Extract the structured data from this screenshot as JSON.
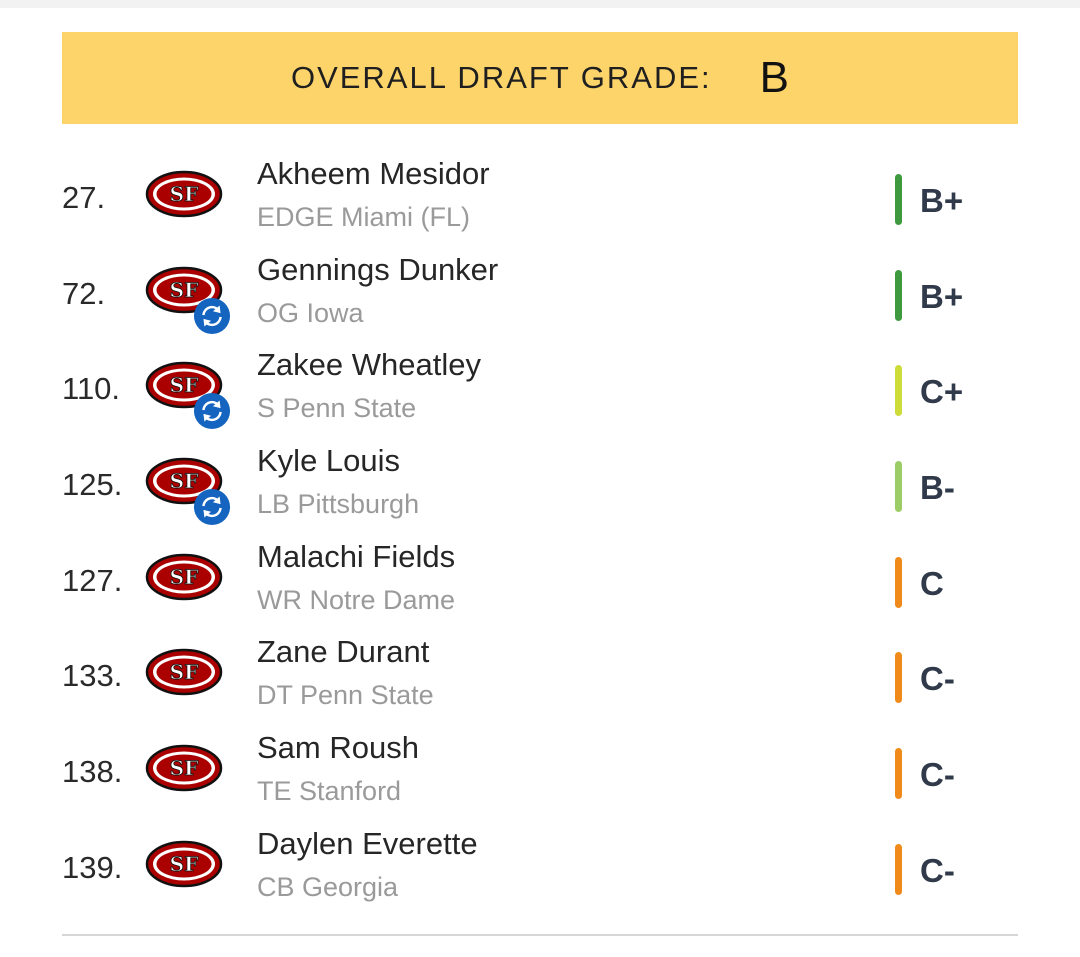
{
  "header": {
    "label": "OVERALL DRAFT GRADE:",
    "grade": "B"
  },
  "colors": {
    "banner": "#fdd46a",
    "green": "#3f9a3f",
    "light_green": "#9ccc65",
    "yellow_green": "#cddc39",
    "orange": "#f08a1a",
    "team_red": "#aa0000",
    "trade_blue": "#1565c0"
  },
  "picks": [
    {
      "number": "27.",
      "name": "Akheem Mesidor",
      "info": "EDGE Miami (FL)",
      "grade": "B+",
      "grade_color": "#3f9a3f",
      "traded": false,
      "logo_icon": "49ers-logo-icon"
    },
    {
      "number": "72.",
      "name": "Gennings Dunker",
      "info": "OG Iowa",
      "grade": "B+",
      "grade_color": "#3f9a3f",
      "traded": true,
      "logo_icon": "49ers-logo-icon"
    },
    {
      "number": "110.",
      "name": "Zakee Wheatley",
      "info": "S Penn State",
      "grade": "C+",
      "grade_color": "#cddc39",
      "traded": true,
      "logo_icon": "49ers-logo-icon"
    },
    {
      "number": "125.",
      "name": "Kyle Louis",
      "info": "LB Pittsburgh",
      "grade": "B-",
      "grade_color": "#9ccc65",
      "traded": true,
      "logo_icon": "49ers-logo-icon"
    },
    {
      "number": "127.",
      "name": "Malachi Fields",
      "info": "WR Notre Dame",
      "grade": "C",
      "grade_color": "#f08a1a",
      "traded": false,
      "logo_icon": "49ers-logo-icon"
    },
    {
      "number": "133.",
      "name": "Zane Durant",
      "info": "DT Penn State",
      "grade": "C-",
      "grade_color": "#f08a1a",
      "traded": false,
      "logo_icon": "49ers-logo-icon"
    },
    {
      "number": "138.",
      "name": "Sam Roush",
      "info": "TE Stanford",
      "grade": "C-",
      "grade_color": "#f08a1a",
      "traded": false,
      "logo_icon": "49ers-logo-icon"
    },
    {
      "number": "139.",
      "name": "Daylen Everette",
      "info": "CB Georgia",
      "grade": "C-",
      "grade_color": "#f08a1a",
      "traded": false,
      "logo_icon": "49ers-logo-icon"
    }
  ]
}
